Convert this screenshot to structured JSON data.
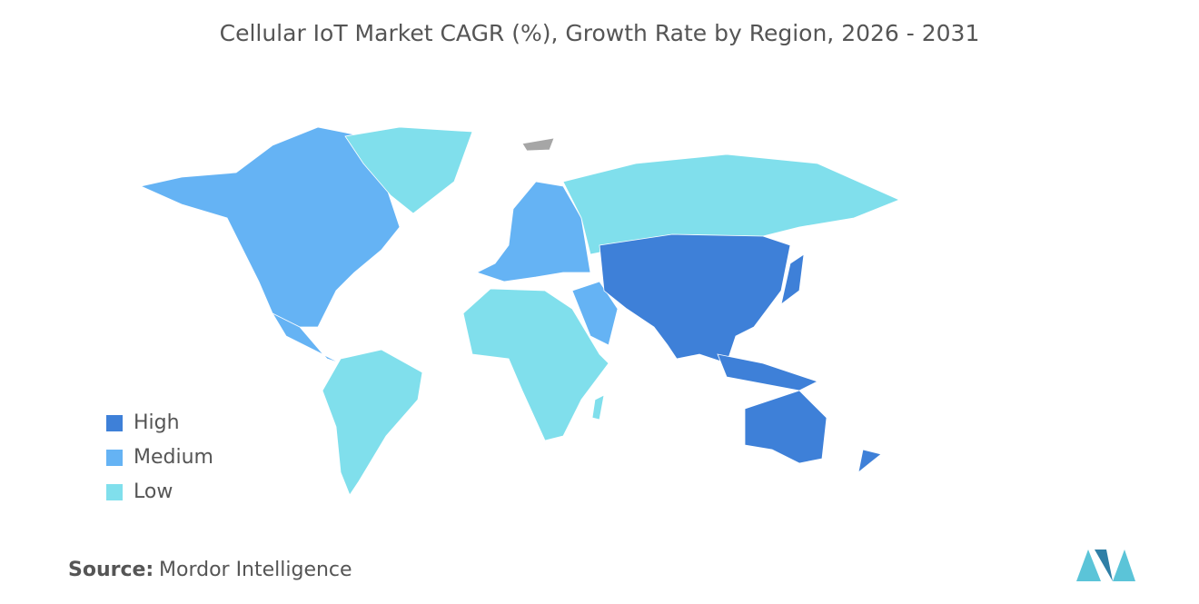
{
  "title": "Cellular IoT Market CAGR (%), Growth Rate by Region, 2026 - 2031",
  "legend": [
    {
      "label": "High",
      "color": "#3e80d8"
    },
    {
      "label": "Medium",
      "color": "#65b3f4"
    },
    {
      "label": "Low",
      "color": "#80dfec"
    }
  ],
  "source": {
    "label": "Source:",
    "text": "Mordor Intelligence"
  }
}
